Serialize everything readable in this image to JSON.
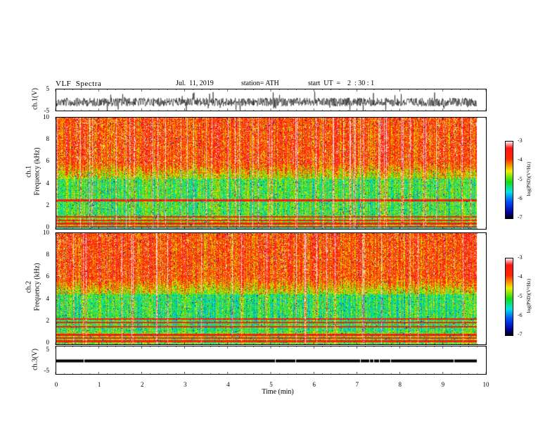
{
  "header": {
    "title": "VLF  Spectra",
    "date": "Jul.  11, 2019",
    "station": "station= ATH",
    "start": "start  UT  =    2  : 30 : 1"
  },
  "chart_data": [
    {
      "type": "line",
      "panel": "ch1-waveform",
      "ylabel": "ch.1(V)",
      "ylim": [
        -5,
        5
      ],
      "yticks": [
        "5",
        "-5"
      ],
      "xlim": [
        0,
        10
      ]
    },
    {
      "type": "heatmap",
      "panel": "ch1-spectrogram",
      "ylabel": "Frequency (kHz)",
      "channel_label": "ch.1",
      "ylim": [
        0,
        10
      ],
      "yticks": [
        "10",
        "8",
        "6",
        "4",
        "2",
        "0"
      ],
      "xlim": [
        0,
        10
      ],
      "colorbar": {
        "label": "log(PSD)(V²/Hz)",
        "range": [
          -7,
          -3
        ],
        "ticks": [
          "-3",
          "-4",
          "-5",
          "-6",
          "-7"
        ]
      },
      "duration_min": 9.8
    },
    {
      "type": "heatmap",
      "panel": "ch2-spectrogram",
      "ylabel": "Frequency (kHz)",
      "channel_label": "ch.2",
      "ylim": [
        0,
        10
      ],
      "yticks": [
        "10",
        "8",
        "6",
        "4",
        "2",
        "0"
      ],
      "xlim": [
        0,
        10
      ],
      "colorbar": {
        "label": "log(PSD)(V²/Hz)",
        "range": [
          -7,
          -3
        ],
        "ticks": [
          "-3",
          "-4",
          "-5",
          "-6",
          "-7"
        ]
      },
      "duration_min": 9.8
    },
    {
      "type": "line",
      "panel": "ch3-waveform",
      "ylabel": "ch.3(V)",
      "ylim": [
        -5,
        5
      ],
      "yticks": [
        "5",
        "-5"
      ],
      "xlim": [
        0,
        10
      ],
      "xlabel": "Time  (min)",
      "xticks": [
        "0",
        "1",
        "2",
        "3",
        "4",
        "5",
        "6",
        "7",
        "8",
        "9",
        "10"
      ]
    }
  ]
}
